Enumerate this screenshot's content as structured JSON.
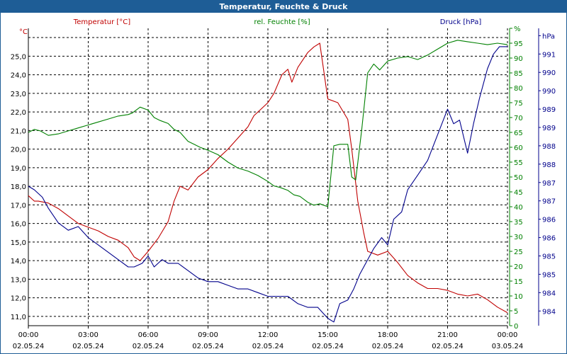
{
  "window": {
    "title": "Temperatur, Feuchte & Druck"
  },
  "chart_data": {
    "type": "line",
    "title": "Temperatur, Feuchte & Druck",
    "x_ticks": [
      {
        "time": "00:00",
        "date": "02.05.24"
      },
      {
        "time": "03:00",
        "date": "02.05.24"
      },
      {
        "time": "06:00",
        "date": "02.05.24"
      },
      {
        "time": "09:00",
        "date": "02.05.24"
      },
      {
        "time": "12:00",
        "date": "02.05.24"
      },
      {
        "time": "15:00",
        "date": "02.05.24"
      },
      {
        "time": "18:00",
        "date": "02.05.24"
      },
      {
        "time": "21:00",
        "date": "02.05.24"
      },
      {
        "time": "00:00",
        "date": "03.05.24"
      }
    ],
    "xlim": [
      0,
      24
    ],
    "grid": true,
    "axes": {
      "temperature": {
        "label": "Temperatur [°C]",
        "unit": "°C",
        "color": "#c00000",
        "ylim": [
          10.5,
          26.5
        ],
        "ticks": [
          11.0,
          12.0,
          13.0,
          14.0,
          15.0,
          16.0,
          17.0,
          18.0,
          19.0,
          20.0,
          21.0,
          22.0,
          23.0,
          24.0,
          25.0
        ],
        "tick_labels": [
          "11,0",
          "12,0",
          "13,0",
          "14,0",
          "15,0",
          "16,0",
          "17,0",
          "18,0",
          "19,0",
          "20,0",
          "21,0",
          "22,0",
          "23,0",
          "24,0",
          "25,0"
        ]
      },
      "humidity": {
        "label": "rel. Feuchte [%]",
        "unit": "%",
        "color": "#008000",
        "ylim": [
          0,
          100
        ],
        "ticks": [
          0,
          5,
          10,
          15,
          20,
          25,
          30,
          35,
          40,
          45,
          50,
          55,
          60,
          65,
          70,
          75,
          80,
          85,
          90,
          95,
          100
        ],
        "tick_labels": [
          "0",
          "5",
          "10",
          "15",
          "20",
          "25",
          "30",
          "35",
          "40",
          "45",
          "50",
          "55",
          "60",
          "65",
          "70",
          "75",
          "80",
          "85",
          "90",
          "95",
          "%"
        ]
      },
      "pressure": {
        "label": "Druck [hPa]",
        "unit": "hPa",
        "color": "#00008b",
        "ylim": [
          983.3,
          991.4
        ],
        "ticks": [
          983.7,
          984.2,
          984.7,
          985.2,
          985.7,
          986.2,
          986.7,
          987.2,
          987.7,
          988.2,
          988.7,
          989.2,
          989.7,
          990.2,
          990.7,
          991.2
        ],
        "tick_labels": [
          "984",
          "984",
          "985",
          "985",
          "986",
          "986",
          "987",
          "987",
          "988",
          "988",
          "989",
          "989",
          "990",
          "990",
          "991",
          "hPa"
        ]
      }
    },
    "series": [
      {
        "name": "Temperatur [°C]",
        "axis": "temperature",
        "x": [
          0,
          0.3,
          0.5,
          1,
          1.5,
          2,
          2.5,
          3,
          3.5,
          4,
          4.5,
          5,
          5.3,
          5.6,
          6,
          6.5,
          7,
          7.3,
          7.6,
          8,
          8.5,
          9,
          9.5,
          10,
          10.5,
          11,
          11.3,
          11.7,
          12,
          12.3,
          12.5,
          12.7,
          13,
          13.2,
          13.5,
          14,
          14.3,
          14.6,
          15,
          15.5,
          16,
          16.2,
          16.5,
          16.8,
          17,
          17.5,
          18,
          18.5,
          19,
          19.5,
          20,
          20.5,
          21,
          21.5,
          22,
          22.5,
          23,
          23.5,
          24
        ],
        "y": [
          17.5,
          17.2,
          17.2,
          17.1,
          16.8,
          16.4,
          16.0,
          15.8,
          15.6,
          15.3,
          15.1,
          14.7,
          14.2,
          14.0,
          14.5,
          15.2,
          16.1,
          17.2,
          18.0,
          17.8,
          18.5,
          18.9,
          19.5,
          20.0,
          20.6,
          21.2,
          21.8,
          22.2,
          22.5,
          23.0,
          23.5,
          24.0,
          24.3,
          23.6,
          24.4,
          25.2,
          25.5,
          25.7,
          22.7,
          22.5,
          21.6,
          20.0,
          17.2,
          15.5,
          14.5,
          14.3,
          14.5,
          13.9,
          13.2,
          12.8,
          12.5,
          12.5,
          12.4,
          12.2,
          12.1,
          12.2,
          11.9,
          11.5,
          11.2
        ]
      },
      {
        "name": "rel. Feuchte [%]",
        "axis": "humidity",
        "x": [
          0,
          0.3,
          0.6,
          1,
          1.5,
          2,
          2.5,
          3,
          3.5,
          4,
          4.5,
          5,
          5.2,
          5.6,
          6,
          6.3,
          6.6,
          7,
          7.3,
          7.6,
          8,
          8.3,
          8.6,
          9,
          9.5,
          10,
          10.5,
          11,
          11.5,
          12,
          12.3,
          12.6,
          13,
          13.3,
          13.6,
          14,
          14.3,
          14.6,
          15,
          15.3,
          15.6,
          16,
          16.2,
          16.4,
          16.7,
          17,
          17.3,
          17.6,
          18,
          18.5,
          19,
          19.5,
          20,
          20.5,
          21,
          21.5,
          22,
          22.5,
          23,
          23.5,
          24
        ],
        "y": [
          65,
          66,
          65.5,
          64,
          64.5,
          65.5,
          66.5,
          67.5,
          68.5,
          69.5,
          70.5,
          71,
          71.5,
          73.5,
          72.5,
          70,
          69,
          68,
          66,
          65,
          62,
          61,
          60,
          59,
          57.5,
          55,
          53,
          52,
          50.5,
          48.5,
          47,
          46.5,
          45.5,
          44,
          43.5,
          41.5,
          40.5,
          41,
          40,
          60.5,
          61,
          61,
          50,
          49,
          66,
          85,
          88,
          86,
          89,
          90,
          90.5,
          89.5,
          91,
          93,
          95,
          96,
          95.5,
          95,
          94.5,
          95,
          94.5
        ]
      },
      {
        "name": "Druck [hPa]",
        "axis": "pressure",
        "x": [
          0,
          0.3,
          0.7,
          1,
          1.5,
          2,
          2.5,
          3,
          3.5,
          4,
          4.5,
          5,
          5.3,
          5.7,
          6,
          6.3,
          6.7,
          7,
          7.5,
          8,
          8.5,
          9,
          9.5,
          10,
          10.5,
          11,
          11.5,
          12,
          12.5,
          13,
          13.5,
          14,
          14.5,
          15,
          15.3,
          15.6,
          16,
          16.3,
          16.6,
          17,
          17.3,
          17.7,
          18,
          18.3,
          18.7,
          19,
          19.5,
          20,
          20.5,
          21,
          21.3,
          21.6,
          22,
          22.3,
          22.6,
          23,
          23.3,
          23.6,
          24
        ],
        "y": [
          987.1,
          987.0,
          986.8,
          986.5,
          986.1,
          985.9,
          986.0,
          985.7,
          985.5,
          985.3,
          985.1,
          984.9,
          984.9,
          985.0,
          985.2,
          984.9,
          985.1,
          985.0,
          985.0,
          984.8,
          984.6,
          984.5,
          984.5,
          984.4,
          984.3,
          984.3,
          984.2,
          984.1,
          984.1,
          984.1,
          983.9,
          983.8,
          983.8,
          983.5,
          983.4,
          983.9,
          984.0,
          984.3,
          984.7,
          985.1,
          985.4,
          985.7,
          985.5,
          986.2,
          986.4,
          987.0,
          987.4,
          987.8,
          988.5,
          989.2,
          988.8,
          988.9,
          988.0,
          988.8,
          989.5,
          990.3,
          990.7,
          990.9,
          990.9
        ]
      }
    ]
  }
}
